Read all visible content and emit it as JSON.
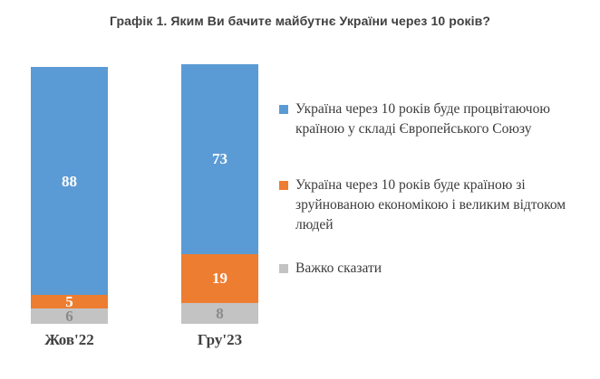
{
  "title": "Графік 1. Яким Ви бачите майбутнє України через 10 років?",
  "chart_data": {
    "type": "bar",
    "subtype": "stacked-column-100",
    "title": "Графік 1. Яким Ви бачите майбутнє України через 10 років?",
    "categories": [
      "Жов'22",
      "Гру'23"
    ],
    "series": [
      {
        "name": "Україна через 10 років буде процвітаючою країною у складі Європейського Союзу",
        "color": "#5B9BD5",
        "label_color": "#FFFFFF",
        "values": [
          88,
          73
        ]
      },
      {
        "name": "Україна через 10 років буде країною зі зруйнованою економікою і великим відтоком людей",
        "color": "#ED7D31",
        "label_color": "#FFFFFF",
        "values": [
          5,
          19
        ]
      },
      {
        "name": "Важко сказати",
        "color": "#C3C3C3",
        "label_color": "#8A8A8A",
        "values": [
          6,
          8
        ]
      }
    ],
    "ylim": [
      0,
      100
    ],
    "grid": false,
    "data_labels": true,
    "legend_position": "right",
    "axis_label_color": "#404040",
    "title_color": "#404040"
  }
}
